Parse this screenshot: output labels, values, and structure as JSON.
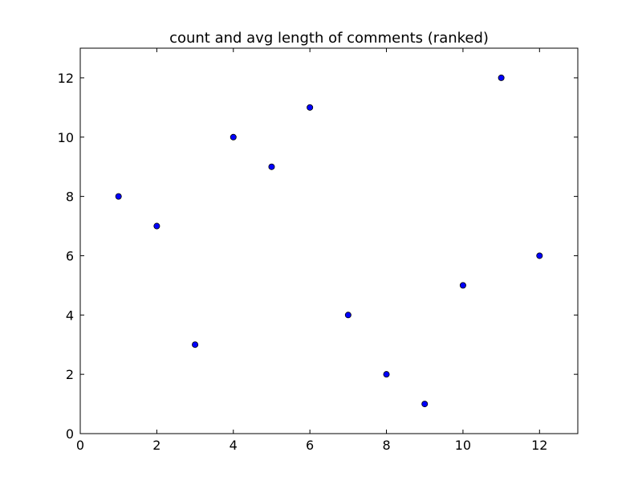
{
  "chart_data": {
    "type": "scatter",
    "title": "count and avg length of comments (ranked)",
    "xlabel": "",
    "ylabel": "",
    "xlim": [
      0,
      13
    ],
    "ylim": [
      0,
      13
    ],
    "xticks": [
      0,
      2,
      4,
      6,
      8,
      10,
      12
    ],
    "yticks": [
      0,
      2,
      4,
      6,
      8,
      10,
      12
    ],
    "xtick_labels": [
      "0",
      "2",
      "4",
      "6",
      "8",
      "10",
      "12"
    ],
    "ytick_labels": [
      "0",
      "2",
      "4",
      "6",
      "8",
      "10",
      "12"
    ],
    "grid": false,
    "series": [
      {
        "x": [
          1,
          2,
          3,
          4,
          5,
          6,
          7,
          8,
          9,
          10,
          11,
          12
        ],
        "y": [
          8,
          7,
          3,
          10,
          9,
          11,
          4,
          2,
          1,
          5,
          12,
          6
        ],
        "color": "#0000ff"
      }
    ]
  }
}
